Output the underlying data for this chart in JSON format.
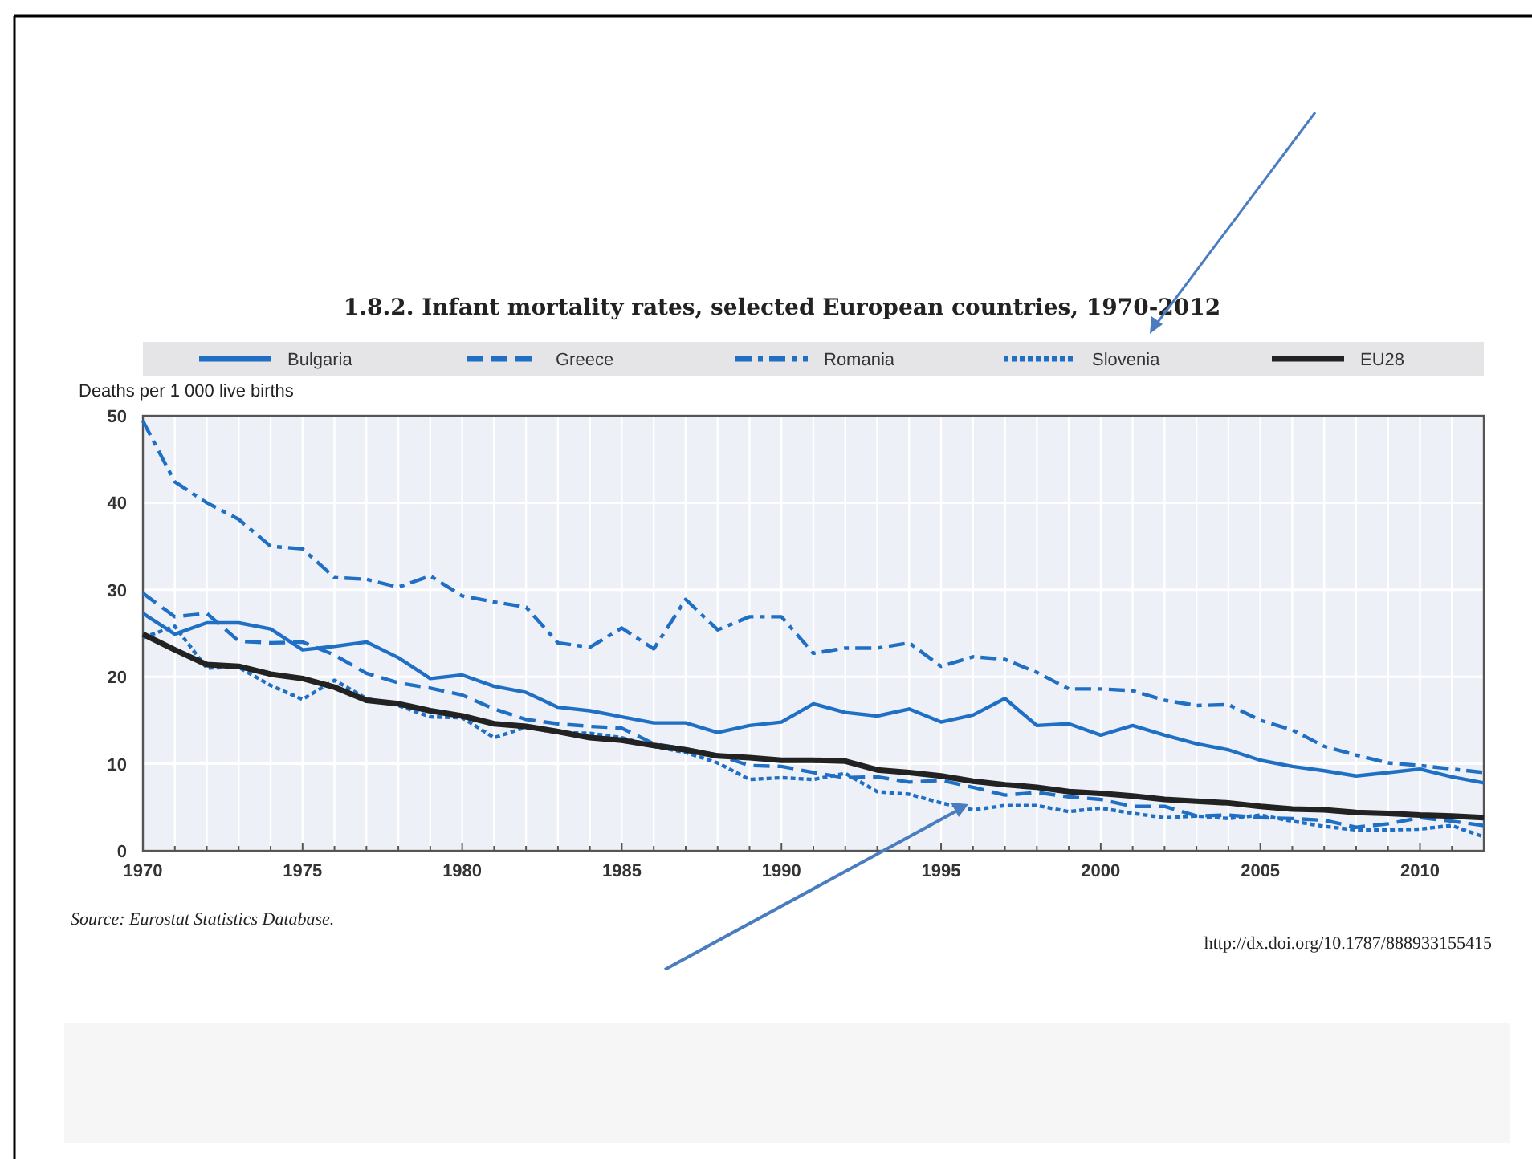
{
  "chart_data": {
    "type": "line",
    "title": "1.8.2.  Infant mortality rates, selected European countries, 1970-2012",
    "ylabel": "Deaths per 1 000 live births",
    "annotations": [
      "Source:  Eurostat Statistics Database.",
      "http://dx.doi.org/10.1787/888933155415"
    ],
    "x": [
      1970,
      1971,
      1972,
      1973,
      1974,
      1975,
      1976,
      1977,
      1978,
      1979,
      1980,
      1981,
      1982,
      1983,
      1984,
      1985,
      1986,
      1987,
      1988,
      1989,
      1990,
      1991,
      1992,
      1993,
      1994,
      1995,
      1996,
      1997,
      1998,
      1999,
      2000,
      2001,
      2002,
      2003,
      2004,
      2005,
      2006,
      2007,
      2008,
      2009,
      2010,
      2011,
      2012
    ],
    "series": [
      {
        "name": "Bulgaria",
        "color": "#1f6fc5",
        "line_style": "solid",
        "values": [
          27.3,
          24.9,
          26.2,
          26.2,
          25.5,
          23.1,
          23.5,
          24.0,
          22.2,
          19.8,
          20.2,
          18.9,
          18.2,
          16.5,
          16.1,
          15.4,
          14.7,
          14.7,
          13.6,
          14.4,
          14.8,
          16.9,
          15.9,
          15.5,
          16.3,
          14.8,
          15.6,
          17.5,
          14.4,
          14.6,
          13.3,
          14.4,
          13.3,
          12.3,
          11.6,
          10.4,
          9.7,
          9.2,
          8.6,
          9.0,
          9.4,
          8.5,
          7.8
        ]
      },
      {
        "name": "Greece",
        "color": "#1f6fc5",
        "line_style": "dashed",
        "values": [
          29.6,
          26.9,
          27.3,
          24.1,
          23.9,
          24.0,
          22.5,
          20.4,
          19.3,
          18.7,
          17.9,
          16.3,
          15.1,
          14.6,
          14.3,
          14.1,
          12.3,
          11.7,
          11.0,
          9.8,
          9.7,
          9.0,
          8.4,
          8.5,
          7.9,
          8.1,
          7.3,
          6.4,
          6.7,
          6.2,
          5.9,
          5.1,
          5.1,
          4.0,
          4.1,
          3.8,
          3.7,
          3.5,
          2.7,
          3.1,
          3.8,
          3.4,
          2.9
        ]
      },
      {
        "name": "Romania",
        "color": "#1f6fc5",
        "line_style": "dashdot",
        "values": [
          49.4,
          42.4,
          40.0,
          38.1,
          35.0,
          34.7,
          31.4,
          31.2,
          30.3,
          31.6,
          29.3,
          28.6,
          28.0,
          23.9,
          23.4,
          25.6,
          23.2,
          28.9,
          25.4,
          26.9,
          26.9,
          22.7,
          23.3,
          23.3,
          23.9,
          21.2,
          22.3,
          22.0,
          20.5,
          18.6,
          18.6,
          18.4,
          17.3,
          16.7,
          16.8,
          15.0,
          13.9,
          12.0,
          11.0,
          10.1,
          9.8,
          9.4,
          9.0
        ]
      },
      {
        "name": "Slovenia",
        "color": "#1f6fc5",
        "line_style": "dotted",
        "values": [
          24.5,
          25.8,
          21.0,
          21.1,
          19.0,
          17.4,
          19.6,
          17.5,
          16.7,
          15.4,
          15.3,
          13.0,
          14.2,
          13.6,
          13.5,
          13.0,
          12.0,
          11.3,
          10.1,
          8.2,
          8.4,
          8.2,
          8.9,
          6.8,
          6.5,
          5.5,
          4.7,
          5.2,
          5.2,
          4.5,
          4.9,
          4.3,
          3.8,
          4.0,
          3.7,
          4.1,
          3.4,
          2.8,
          2.4,
          2.4,
          2.5,
          2.9,
          1.6
        ]
      },
      {
        "name": "EU28",
        "color": "#222222",
        "line_style": "solid",
        "values": [
          24.9,
          23.1,
          21.4,
          21.2,
          20.3,
          19.8,
          18.8,
          17.3,
          16.9,
          16.1,
          15.5,
          14.6,
          14.3,
          13.7,
          13.0,
          12.7,
          12.1,
          11.6,
          10.9,
          10.7,
          10.4,
          10.4,
          10.3,
          9.3,
          9.0,
          8.6,
          8.0,
          7.6,
          7.3,
          6.8,
          6.6,
          6.3,
          5.9,
          5.7,
          5.5,
          5.1,
          4.8,
          4.7,
          4.4,
          4.3,
          4.1,
          4.0,
          3.8
        ]
      }
    ],
    "xlim": [
      1970,
      2012
    ],
    "xticks": [
      1970,
      {
        "value": 1971,
        "label": null
      },
      {
        "value": 1972,
        "label": null
      },
      {
        "value": 1973,
        "label": null
      },
      {
        "value": 1974,
        "label": null
      },
      1975,
      {
        "value": 1976,
        "label": null
      },
      {
        "value": 1977,
        "label": null
      },
      {
        "value": 1978,
        "label": null
      },
      {
        "value": 1979,
        "label": null
      },
      1980,
      {
        "value": 1981,
        "label": null
      },
      {
        "value": 1982,
        "label": null
      },
      {
        "value": 1983,
        "label": null
      },
      {
        "value": 1984,
        "label": null
      },
      1985,
      {
        "value": 1986,
        "label": null
      },
      {
        "value": 1987,
        "label": null
      },
      {
        "value": 1988,
        "label": null
      },
      {
        "value": 1989,
        "label": null
      },
      1990,
      {
        "value": 1991,
        "label": null
      },
      {
        "value": 1992,
        "label": null
      },
      {
        "value": 1993,
        "label": null
      },
      {
        "value": 1994,
        "label": null
      },
      1995,
      {
        "value": 1996,
        "label": null
      },
      {
        "value": 1997,
        "label": null
      },
      {
        "value": 1998,
        "label": null
      },
      {
        "value": 1999,
        "label": null
      },
      2000,
      {
        "value": 2001,
        "label": null
      },
      {
        "value": 2002,
        "label": null
      },
      {
        "value": 2003,
        "label": null
      },
      {
        "value": 2004,
        "label": null
      },
      2005,
      {
        "value": 2006,
        "label": null
      },
      {
        "value": 2007,
        "label": null
      },
      {
        "value": 2008,
        "label": null
      },
      {
        "value": 2009,
        "label": null
      },
      2010,
      {
        "value": 2011,
        "label": null
      },
      {
        "value": 2012,
        "label": null
      }
    ],
    "ylim": [
      0,
      50
    ],
    "yticks": [
      0,
      10,
      20,
      30,
      40,
      50
    ],
    "grid": true,
    "legend": "top",
    "marker": "none"
  }
}
